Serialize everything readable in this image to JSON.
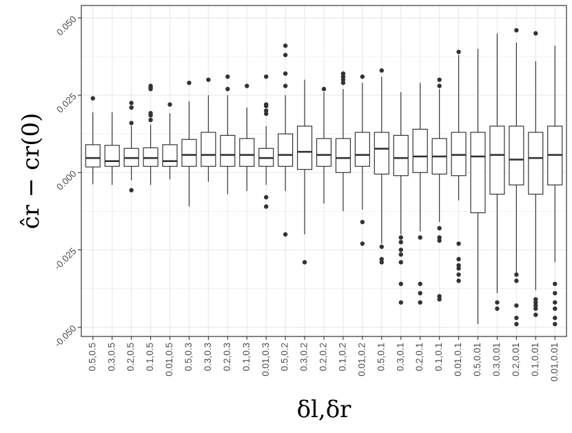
{
  "chart_data": {
    "type": "boxplot",
    "xlabel": "δl,δr",
    "ylabel": "ĉr − cr(0)",
    "ylim": [
      -0.053,
      0.054
    ],
    "yticks": [
      -0.05,
      -0.025,
      0.0,
      0.025,
      0.05
    ],
    "ytick_labels": [
      "-0.050",
      "-0.025",
      "0.000",
      "0.025",
      "0.050"
    ],
    "grid": true,
    "categories": [
      "0.5,0.5",
      "0.3,0.5",
      "0.2,0.5",
      "0.1,0.5",
      "0.01,0.5",
      "0.5,0.3",
      "0.3,0.3",
      "0.2,0.3",
      "0.1,0.3",
      "0.01,0.3",
      "0.5,0.2",
      "0.3,0.2",
      "0.2,0.2",
      "0.1,0.2",
      "0.01,0.2",
      "0.5,0.1",
      "0.3,0.1",
      "0.2,0.1",
      "0.1,0.1",
      "0.01,0.1",
      "0.5,0.01",
      "0.3,0.01",
      "0.2,0.01",
      "0.1,0.01",
      "0.01,0.01"
    ],
    "boxes": [
      {
        "lw": -0.0038,
        "q1": 0.0018,
        "med": 0.0047,
        "q3": 0.009,
        "uw": 0.0195,
        "outliers": [
          0.024
        ]
      },
      {
        "lw": -0.004,
        "q1": 0.002,
        "med": 0.0037,
        "q3": 0.0088,
        "uw": 0.0195,
        "outliers": []
      },
      {
        "lw": -0.0025,
        "q1": 0.002,
        "med": 0.0047,
        "q3": 0.0078,
        "uw": 0.015,
        "outliers": [
          0.016,
          0.021,
          0.0225,
          -0.0057
        ]
      },
      {
        "lw": -0.004,
        "q1": 0.002,
        "med": 0.0047,
        "q3": 0.008,
        "uw": 0.0155,
        "outliers": [
          0.017,
          0.0185,
          0.0192,
          0.027,
          0.0275,
          0.028
        ]
      },
      {
        "lw": -0.0022,
        "q1": 0.002,
        "med": 0.0037,
        "q3": 0.009,
        "uw": 0.0192,
        "outliers": [
          0.022
        ]
      },
      {
        "lw": -0.011,
        "q1": 0.002,
        "med": 0.0057,
        "q3": 0.0107,
        "uw": 0.023,
        "outliers": [
          0.029
        ]
      },
      {
        "lw": -0.003,
        "q1": 0.002,
        "med": 0.0057,
        "q3": 0.013,
        "uw": 0.025,
        "outliers": [
          0.03
        ]
      },
      {
        "lw": -0.007,
        "q1": 0.002,
        "med": 0.0057,
        "q3": 0.012,
        "uw": 0.025,
        "outliers": [
          0.027,
          0.031
        ]
      },
      {
        "lw": -0.006,
        "q1": 0.002,
        "med": 0.0057,
        "q3": 0.011,
        "uw": 0.021,
        "outliers": [
          0.028
        ]
      },
      {
        "lw": -0.004,
        "q1": 0.002,
        "med": 0.0047,
        "q3": 0.0078,
        "uw": 0.015,
        "outliers": [
          0.019,
          0.02,
          0.0215,
          0.022,
          0.031,
          -0.008,
          -0.011
        ]
      },
      {
        "lw": -0.006,
        "q1": 0.002,
        "med": 0.0057,
        "q3": 0.0125,
        "uw": 0.025,
        "outliers": [
          0.028,
          0.032,
          0.038,
          0.041,
          -0.02
        ]
      },
      {
        "lw": -0.02,
        "q1": 0.001,
        "med": 0.0067,
        "q3": 0.015,
        "uw": 0.03,
        "outliers": [
          -0.029
        ]
      },
      {
        "lw": -0.01,
        "q1": 0.002,
        "med": 0.0057,
        "q3": 0.011,
        "uw": 0.026,
        "outliers": [
          0.027
        ]
      },
      {
        "lw": -0.0125,
        "q1": 0.0,
        "med": 0.0047,
        "q3": 0.011,
        "uw": 0.027,
        "outliers": [
          0.029,
          0.03,
          0.031,
          0.032
        ]
      },
      {
        "lw": -0.012,
        "q1": 0.002,
        "med": 0.0057,
        "q3": 0.013,
        "uw": 0.029,
        "outliers": [
          0.031,
          -0.016,
          -0.023
        ]
      },
      {
        "lw": -0.023,
        "q1": -0.0005,
        "med": 0.0077,
        "q3": 0.013,
        "uw": 0.031,
        "outliers": [
          0.033,
          -0.024,
          -0.028,
          -0.029
        ]
      },
      {
        "lw": -0.02,
        "q1": -0.001,
        "med": 0.0047,
        "q3": 0.012,
        "uw": 0.026,
        "outliers": [
          -0.021,
          -0.0225,
          -0.025,
          -0.0265,
          -0.029,
          -0.036,
          -0.042
        ]
      },
      {
        "lw": -0.019,
        "q1": 0.0,
        "med": 0.0052,
        "q3": 0.014,
        "uw": 0.029,
        "outliers": [
          -0.021,
          -0.036,
          -0.039,
          -0.042
        ]
      },
      {
        "lw": -0.016,
        "q1": -0.0005,
        "med": 0.0052,
        "q3": 0.011,
        "uw": 0.027,
        "outliers": [
          0.028,
          0.03,
          -0.018,
          -0.021,
          -0.022,
          -0.04,
          -0.041
        ]
      },
      {
        "lw": -0.009,
        "q1": -0.001,
        "med": 0.0057,
        "q3": 0.013,
        "uw": 0.038,
        "outliers": [
          0.039,
          -0.023,
          -0.028,
          -0.03,
          -0.031,
          -0.033,
          -0.035
        ]
      },
      {
        "lw": -0.049,
        "q1": -0.013,
        "med": 0.0052,
        "q3": 0.013,
        "uw": 0.04,
        "outliers": []
      },
      {
        "lw": -0.039,
        "q1": -0.007,
        "med": 0.0057,
        "q3": 0.015,
        "uw": 0.045,
        "outliers": [
          -0.042,
          -0.044
        ]
      },
      {
        "lw": -0.033,
        "q1": -0.004,
        "med": 0.0042,
        "q3": 0.015,
        "uw": 0.042,
        "outliers": [
          0.046,
          -0.033,
          -0.035,
          -0.043,
          -0.047,
          -0.049
        ]
      },
      {
        "lw": -0.038,
        "q1": -0.007,
        "med": 0.0047,
        "q3": 0.013,
        "uw": 0.036,
        "outliers": [
          0.045,
          -0.041,
          -0.042,
          -0.043,
          -0.044,
          -0.046
        ]
      },
      {
        "lw": -0.029,
        "q1": -0.004,
        "med": 0.0057,
        "q3": 0.015,
        "uw": 0.041,
        "outliers": [
          -0.036,
          -0.039,
          -0.042,
          -0.044,
          -0.047,
          -0.049
        ]
      }
    ],
    "colors": {
      "panel_bg": "#ffffff",
      "grid": "#ebebeb",
      "box_line": "#333333",
      "box_fill": "#ffffff",
      "outlier": "#333333",
      "axis_text": "#4d4d4d"
    }
  }
}
